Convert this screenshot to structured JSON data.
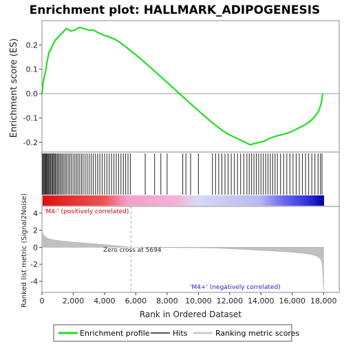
{
  "chart_data": {
    "type": "line",
    "title": "Enrichment plot: HALLMARK_ADIPOGENESIS",
    "xlabel": "Rank in Ordered Dataset",
    "xlim": [
      0,
      19000
    ],
    "x_ticks": [
      0,
      2000,
      4000,
      6000,
      8000,
      10000,
      12000,
      14000,
      16000,
      18000
    ],
    "x_tick_labels": [
      "0",
      "2,000",
      "4,000",
      "6,000",
      "8,000",
      "10,000",
      "12,000",
      "14,000",
      "16,000",
      "18,000"
    ],
    "es_panel": {
      "ylabel": "Enrichment score (ES)",
      "ylim": [
        -0.24,
        0.3
      ],
      "y_ticks": [
        -0.2,
        -0.1,
        0.0,
        0.1,
        0.2
      ],
      "y_tick_labels": [
        "-0.2",
        "-0.1",
        "0.0",
        "0.1",
        "0.2"
      ],
      "series": [
        {
          "name": "Enrichment profile",
          "color": "#22dd22",
          "x": [
            0,
            60,
            150,
            250,
            350,
            450,
            550,
            700,
            850,
            1000,
            1150,
            1300,
            1450,
            1550,
            1700,
            1850,
            2000,
            2150,
            2300,
            2450,
            2600,
            2800,
            3000,
            3200,
            3400,
            3600,
            3800,
            4000,
            4200,
            4400,
            4600,
            4800,
            5000,
            5200,
            5400,
            5694,
            6000,
            7000,
            8000,
            9000,
            10000,
            10800,
            11500,
            12000,
            12500,
            13000,
            13300,
            13600,
            13900,
            14200,
            14500,
            14800,
            15100,
            15400,
            15700,
            16000,
            16300,
            16600,
            16900,
            17200,
            17500,
            17700,
            17850,
            17950
          ],
          "y": [
            0.0,
            0.04,
            0.07,
            0.1,
            0.14,
            0.17,
            0.18,
            0.2,
            0.22,
            0.23,
            0.24,
            0.25,
            0.26,
            0.268,
            0.262,
            0.257,
            0.26,
            0.262,
            0.27,
            0.272,
            0.268,
            0.265,
            0.26,
            0.262,
            0.258,
            0.25,
            0.245,
            0.238,
            0.236,
            0.23,
            0.225,
            0.218,
            0.21,
            0.2,
            0.19,
            0.175,
            0.16,
            0.104,
            0.046,
            -0.012,
            -0.07,
            -0.115,
            -0.15,
            -0.17,
            -0.185,
            -0.2,
            -0.21,
            -0.205,
            -0.2,
            -0.195,
            -0.185,
            -0.178,
            -0.172,
            -0.168,
            -0.162,
            -0.155,
            -0.145,
            -0.135,
            -0.125,
            -0.11,
            -0.09,
            -0.07,
            -0.04,
            0.0
          ]
        }
      ]
    },
    "hits_panel": {
      "legend_label": "Hits",
      "hit_ranks": [
        40,
        90,
        140,
        190,
        240,
        290,
        340,
        390,
        440,
        500,
        560,
        620,
        680,
        740,
        800,
        860,
        930,
        1000,
        1070,
        1150,
        1230,
        1310,
        1400,
        1490,
        1580,
        1680,
        1780,
        1880,
        1990,
        2100,
        2200,
        2300,
        2410,
        2520,
        2630,
        2760,
        2890,
        3020,
        3150,
        3280,
        3420,
        3560,
        3700,
        3850,
        4000,
        4150,
        4300,
        4450,
        4600,
        4750,
        4900,
        5050,
        5200,
        5350,
        5500,
        5650,
        6600,
        7200,
        7600,
        8000,
        9000,
        9200,
        9500,
        10000,
        10900,
        11100,
        11300,
        11500,
        11700,
        11900,
        12100,
        12300,
        12500,
        12700,
        12900,
        13100,
        13250,
        13400,
        13550,
        13700,
        13850,
        14000,
        14150,
        14300,
        14450,
        14600,
        14750,
        14900,
        15050,
        15250,
        15450,
        15650,
        15850,
        16050,
        16250,
        16450,
        16650,
        16850,
        17050,
        17250,
        17450,
        17650,
        17800,
        17900
      ]
    },
    "metric_panel": {
      "ylabel": "Ranked list metric (Signal2Noise)",
      "legend_label": "Ranking metric scores",
      "ylim": [
        -5.3,
        4.8
      ],
      "y_ticks": [
        -4,
        -2,
        0,
        2,
        4
      ],
      "y_tick_labels": [
        "-4",
        "-2",
        "0",
        "2",
        "4"
      ],
      "x": [
        0,
        50,
        150,
        300,
        500,
        800,
        1200,
        2000,
        3000,
        4000,
        5000,
        5694,
        7000,
        9000,
        10000,
        11000,
        12000,
        13000,
        14000,
        15000,
        16000,
        16800,
        17300,
        17600,
        17800,
        17900,
        17960,
        18000
      ],
      "y": [
        2.1,
        1.6,
        1.3,
        1.1,
        0.95,
        0.85,
        0.75,
        0.6,
        0.45,
        0.3,
        0.15,
        0.0,
        -0.02,
        -0.04,
        -0.06,
        -0.09,
        -0.16,
        -0.26,
        -0.36,
        -0.46,
        -0.58,
        -0.72,
        -0.88,
        -1.05,
        -1.35,
        -1.8,
        -3.0,
        -5.2
      ],
      "zero_cross_label": "Zero cross at 5694",
      "zero_cross_rank": 5694,
      "pos_label": "'M4-' (positively correlated)",
      "neg_label": "'M4+' (negatively correlated)",
      "pos_color": "#dd0000",
      "neg_color": "#0000bb"
    },
    "legend_items": [
      "Enrichment profile",
      "Hits",
      "Ranking metric scores"
    ]
  }
}
